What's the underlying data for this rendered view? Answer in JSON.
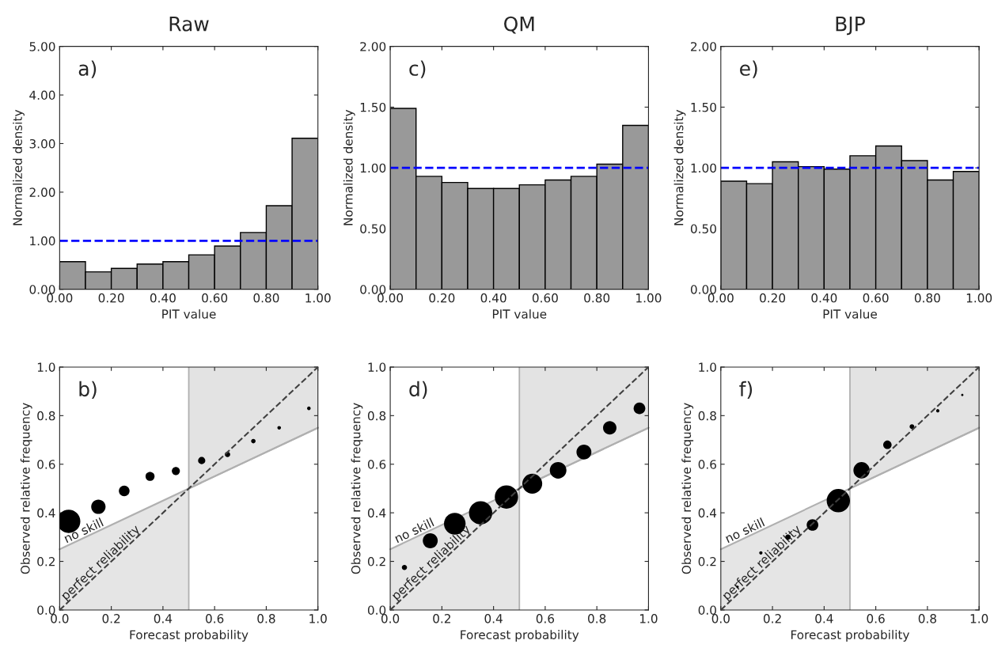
{
  "chart_data": [
    {
      "type": "histogram",
      "title": "Raw",
      "xlabel": "PIT value",
      "ylabel": "Normalized density",
      "annotations": [
        "a)"
      ],
      "bins": [
        0,
        0.1,
        0.2,
        0.3,
        0.4,
        0.5,
        0.6,
        0.7,
        0.8,
        0.9,
        1.0
      ],
      "values": [
        0.57,
        0.36,
        0.43,
        0.52,
        0.57,
        0.71,
        0.89,
        1.17,
        1.72,
        3.11
      ],
      "color": "#999999",
      "xlim": [
        0,
        1
      ],
      "xticks": [
        {
          "value": 0,
          "label": "0.00"
        },
        {
          "value": 0.2,
          "label": "0.20"
        },
        {
          "value": 0.4,
          "label": "0.40"
        },
        {
          "value": 0.6,
          "label": "0.60"
        },
        {
          "value": 0.8,
          "label": "0.80"
        },
        {
          "value": 1,
          "label": "1.00"
        }
      ],
      "ylim": [
        0,
        5
      ],
      "yticks": [
        {
          "value": 0,
          "label": "0.00"
        },
        {
          "value": 1,
          "label": "1.00"
        },
        {
          "value": 2,
          "label": "2.00"
        },
        {
          "value": 3,
          "label": "3.00"
        },
        {
          "value": 4,
          "label": "4.00"
        },
        {
          "value": 5,
          "label": "5.00"
        }
      ],
      "ref_lines": [
        {
          "axis": "y",
          "value": 1,
          "color": "#0000ff",
          "line_style": "dashed"
        }
      ]
    },
    {
      "type": "histogram",
      "title": "QM",
      "xlabel": "PIT value",
      "ylabel": "Normalized density",
      "annotations": [
        "c)"
      ],
      "bins": [
        0,
        0.1,
        0.2,
        0.3,
        0.4,
        0.5,
        0.6,
        0.7,
        0.8,
        0.9,
        1.0
      ],
      "values": [
        1.49,
        0.93,
        0.88,
        0.83,
        0.83,
        0.86,
        0.9,
        0.93,
        1.03,
        1.35
      ],
      "color": "#999999",
      "xlim": [
        0,
        1
      ],
      "xticks": [
        {
          "value": 0,
          "label": "0.00"
        },
        {
          "value": 0.2,
          "label": "0.20"
        },
        {
          "value": 0.4,
          "label": "0.40"
        },
        {
          "value": 0.6,
          "label": "0.60"
        },
        {
          "value": 0.8,
          "label": "0.80"
        },
        {
          "value": 1,
          "label": "1.00"
        }
      ],
      "ylim": [
        0,
        2
      ],
      "yticks": [
        {
          "value": 0,
          "label": "0.00"
        },
        {
          "value": 0.5,
          "label": "0.50"
        },
        {
          "value": 1,
          "label": "1.00"
        },
        {
          "value": 1.5,
          "label": "1.50"
        },
        {
          "value": 2,
          "label": "2.00"
        }
      ],
      "ref_lines": [
        {
          "axis": "y",
          "value": 1,
          "color": "#0000ff",
          "line_style": "dashed"
        }
      ]
    },
    {
      "type": "histogram",
      "title": "BJP",
      "xlabel": "PIT value",
      "ylabel": "Normalized density",
      "annotations": [
        "e)"
      ],
      "bins": [
        0,
        0.1,
        0.2,
        0.3,
        0.4,
        0.5,
        0.6,
        0.7,
        0.8,
        0.9,
        1.0
      ],
      "values": [
        0.89,
        0.87,
        1.05,
        1.01,
        0.99,
        1.1,
        1.18,
        1.06,
        0.9,
        0.97
      ],
      "color": "#999999",
      "xlim": [
        0,
        1
      ],
      "xticks": [
        {
          "value": 0,
          "label": "0.00"
        },
        {
          "value": 0.2,
          "label": "0.20"
        },
        {
          "value": 0.4,
          "label": "0.40"
        },
        {
          "value": 0.6,
          "label": "0.60"
        },
        {
          "value": 0.8,
          "label": "0.80"
        },
        {
          "value": 1,
          "label": "1.00"
        }
      ],
      "ylim": [
        0,
        2
      ],
      "yticks": [
        {
          "value": 0,
          "label": "0.00"
        },
        {
          "value": 0.5,
          "label": "0.50"
        },
        {
          "value": 1,
          "label": "1.00"
        },
        {
          "value": 1.5,
          "label": "1.50"
        },
        {
          "value": 2,
          "label": "2.00"
        }
      ],
      "ref_lines": [
        {
          "axis": "y",
          "value": 1,
          "color": "#0000ff",
          "line_style": "dashed"
        }
      ]
    },
    {
      "type": "bubble",
      "xlabel": "Forecast probability",
      "ylabel": "Observed relative frequency",
      "annotations": [
        "b)"
      ],
      "series": [
        {
          "type": "area",
          "color": "#e5e5e5",
          "x": [
            0,
            0.5
          ],
          "values": [
            0.25,
            0.5
          ]
        },
        {
          "type": "line",
          "color": "#b0b0b0",
          "line_style": "solid",
          "x": [
            0.5,
            0.75,
            1
          ],
          "values": [
            0.5,
            0.625,
            0.75
          ],
          "lower": [
            0.5,
            0.625,
            0.75
          ],
          "upper": [
            1,
            1,
            1
          ]
        },
        {
          "type": "line",
          "name": "no skill",
          "color": "#b0b0b0",
          "line_style": "solid",
          "x": [
            0,
            1
          ],
          "values": [
            0.25,
            0.75
          ]
        },
        {
          "type": "line",
          "name": "perfect reliability",
          "color": "#404040",
          "line_style": "dashed",
          "x": [
            0,
            0.5,
            1
          ],
          "values": [
            0,
            0.5,
            1
          ]
        },
        {
          "type": "bubble",
          "color": "#000000",
          "x": [
            0.035,
            0.15,
            0.25,
            0.35,
            0.45,
            0.55,
            0.65,
            0.75,
            0.85,
            0.965
          ],
          "values": [
            0.365,
            0.425,
            0.49,
            0.55,
            0.572,
            0.615,
            0.64,
            0.695,
            0.75,
            0.83
          ],
          "sizes": [
            1,
            0.38,
            0.21,
            0.15,
            0.12,
            0.095,
            0.053,
            0.037,
            0.024,
            0.024
          ]
        }
      ],
      "xlim": [
        0,
        1
      ],
      "xticks": [
        {
          "value": 0,
          "label": "0.0"
        },
        0.2,
        0.4,
        0.6,
        0.8,
        {
          "value": 1,
          "label": "1.0"
        }
      ],
      "ylim": [
        0,
        1
      ],
      "yticks": [
        {
          "value": 0,
          "label": "0.0"
        },
        0.2,
        0.4,
        0.6,
        0.8,
        {
          "value": 1,
          "label": "1.0"
        }
      ],
      "ref_lines": [
        {
          "axis": "x",
          "value": 0.5,
          "color": "#b0b0b0",
          "line_style": "solid"
        }
      ]
    },
    {
      "type": "bubble",
      "xlabel": "Forecast probability",
      "ylabel": "Observed relative frequency",
      "annotations": [
        "d)"
      ],
      "series": [
        {
          "type": "area",
          "color": "#e5e5e5",
          "x": [
            0,
            0.5
          ],
          "values": [
            0.25,
            0.5
          ]
        },
        {
          "type": "line",
          "color": "#b0b0b0",
          "line_style": "solid",
          "x": [
            0.5,
            0.75,
            1
          ],
          "values": [
            0.5,
            0.625,
            0.75
          ],
          "lower": [
            0.5,
            0.625,
            0.75
          ],
          "upper": [
            1,
            1,
            1
          ]
        },
        {
          "type": "line",
          "name": "no skill",
          "color": "#b0b0b0",
          "line_style": "solid",
          "x": [
            0,
            1
          ],
          "values": [
            0.25,
            0.75
          ]
        },
        {
          "type": "line",
          "name": "perfect reliability",
          "color": "#404040",
          "line_style": "dashed",
          "x": [
            0,
            0.5,
            1
          ],
          "values": [
            0,
            0.5,
            1
          ]
        },
        {
          "type": "bubble",
          "color": "#000000",
          "x": [
            0.055,
            0.155,
            0.25,
            0.35,
            0.45,
            0.55,
            0.65,
            0.75,
            0.85,
            0.965
          ],
          "values": [
            0.175,
            0.285,
            0.355,
            0.4,
            0.465,
            0.52,
            0.575,
            0.65,
            0.75,
            0.83
          ],
          "sizes": [
            0.05,
            0.41,
            0.86,
            1,
            1,
            0.73,
            0.51,
            0.41,
            0.33,
            0.25
          ]
        }
      ],
      "xlim": [
        0,
        1
      ],
      "xticks": [
        {
          "value": 0,
          "label": "0.0"
        },
        0.2,
        0.4,
        0.6,
        0.8,
        {
          "value": 1,
          "label": "1.0"
        }
      ],
      "ylim": [
        0,
        1
      ],
      "yticks": [
        {
          "value": 0,
          "label": "0.0"
        },
        0.2,
        0.4,
        0.6,
        0.8,
        {
          "value": 1,
          "label": "1.0"
        }
      ],
      "ref_lines": [
        {
          "axis": "x",
          "value": 0.5,
          "color": "#b0b0b0",
          "line_style": "solid"
        }
      ]
    },
    {
      "type": "bubble",
      "xlabel": "Forecast probability",
      "ylabel": "Observed relative frequency",
      "annotations": [
        "f)"
      ],
      "series": [
        {
          "type": "area",
          "color": "#e5e5e5",
          "x": [
            0,
            0.5
          ],
          "values": [
            0.25,
            0.5
          ]
        },
        {
          "type": "line",
          "color": "#b0b0b0",
          "line_style": "solid",
          "x": [
            0.5,
            0.75,
            1
          ],
          "values": [
            0.5,
            0.625,
            0.75
          ],
          "lower": [
            0.5,
            0.625,
            0.75
          ],
          "upper": [
            1,
            1,
            1
          ]
        },
        {
          "type": "line",
          "name": "no skill",
          "color": "#b0b0b0",
          "line_style": "solid",
          "x": [
            0,
            1
          ],
          "values": [
            0.25,
            0.75
          ]
        },
        {
          "type": "line",
          "name": "perfect reliability",
          "color": "#404040",
          "line_style": "dashed",
          "x": [
            0,
            0.5,
            1
          ],
          "values": [
            0,
            0.5,
            1
          ]
        },
        {
          "type": "bubble",
          "color": "#000000",
          "x": [
            0.065,
            0.155,
            0.26,
            0.355,
            0.455,
            0.545,
            0.645,
            0.74,
            0.84,
            0.935
          ],
          "values": [
            0.095,
            0.235,
            0.3,
            0.35,
            0.45,
            0.575,
            0.68,
            0.755,
            0.82,
            0.885
          ],
          "sizes": [
            0.01,
            0.02,
            0.054,
            0.25,
            1,
            0.49,
            0.13,
            0.04,
            0.02,
            0.01
          ]
        }
      ],
      "xlim": [
        0,
        1
      ],
      "xticks": [
        {
          "value": 0,
          "label": "0.0"
        },
        0.2,
        0.4,
        0.6,
        0.8,
        {
          "value": 1,
          "label": "1.0"
        }
      ],
      "ylim": [
        0,
        1
      ],
      "yticks": [
        {
          "value": 0,
          "label": "0.0"
        },
        0.2,
        0.4,
        0.6,
        0.8,
        {
          "value": 1,
          "label": "1.0"
        }
      ],
      "ref_lines": [
        {
          "axis": "x",
          "value": 0.5,
          "color": "#b0b0b0",
          "line_style": "solid"
        }
      ]
    }
  ]
}
